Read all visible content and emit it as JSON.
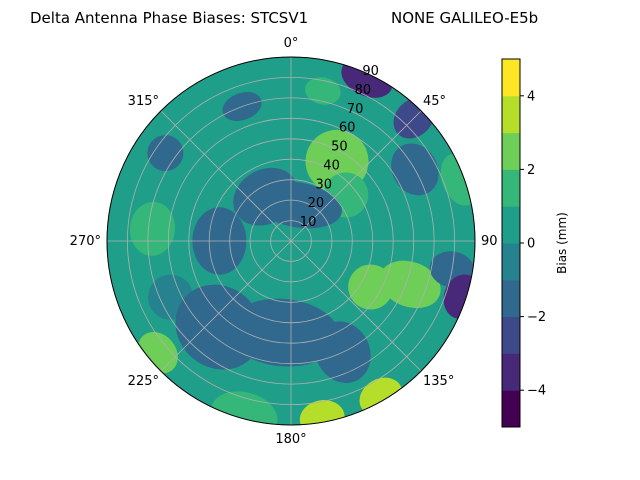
{
  "chart_data": {
    "type": "heatmap",
    "subtype": "polar-contour",
    "title_left": "Delta Antenna Phase Biases: STCSV1",
    "title_right": "NONE GALILEO-E5b",
    "azimuth_labels": [
      "0°",
      "45°",
      "90",
      "135°",
      "180°",
      "225°",
      "270°",
      "315°"
    ],
    "azimuth_degrees": [
      0,
      45,
      90,
      135,
      180,
      225,
      270,
      315
    ],
    "radial_ticks": [
      10,
      20,
      30,
      40,
      50,
      60,
      70,
      80,
      90
    ],
    "radial_range": [
      0,
      90
    ],
    "radial_label_azimuth_deg": 22.5,
    "grid": true,
    "colorbar": {
      "label": "Bias (mm)",
      "ticks": [
        -4,
        -2,
        0,
        2,
        4
      ],
      "range": [
        -5,
        5
      ],
      "levels": [
        -5,
        -4,
        -3,
        -2,
        -1,
        0,
        1,
        2,
        3,
        4,
        5
      ],
      "colors": [
        "#440154",
        "#482878",
        "#3e4989",
        "#31688e",
        "#26828e",
        "#1f9e89",
        "#35b779",
        "#6ece58",
        "#b5de2b",
        "#fde725"
      ]
    },
    "background_level": 0.3,
    "patches": [
      {
        "az": 25,
        "r": 88,
        "ra": 12,
        "rr": 8,
        "value": -3.4
      },
      {
        "az": 45,
        "r": 85,
        "ra": 8,
        "rr": 10,
        "value": -2.6
      },
      {
        "az": 12,
        "r": 75,
        "ra": 8,
        "rr": 6,
        "value": 1.6
      },
      {
        "az": 340,
        "r": 70,
        "ra": 9,
        "rr": 6,
        "value": -1.6
      },
      {
        "az": 305,
        "r": 75,
        "ra": 8,
        "rr": 8,
        "value": -1.2
      },
      {
        "az": 275,
        "r": 68,
        "ra": 12,
        "rr": 10,
        "value": 1.7
      },
      {
        "az": 245,
        "r": 65,
        "ra": 10,
        "rr": 10,
        "value": -0.8
      },
      {
        "az": 220,
        "r": 55,
        "ra": 20,
        "rr": 18,
        "value": -1.7
      },
      {
        "az": 185,
        "r": 45,
        "ra": 25,
        "rr": 15,
        "value": -1.6
      },
      {
        "az": 155,
        "r": 60,
        "ra": 12,
        "rr": 14,
        "value": -1.3
      },
      {
        "az": 110,
        "r": 62,
        "ra": 10,
        "rr": 14,
        "value": 2.3
      },
      {
        "az": 100,
        "r": 80,
        "ra": 8,
        "rr": 10,
        "value": -1.8
      },
      {
        "az": 108,
        "r": 88,
        "ra": 10,
        "rr": 8,
        "value": -3.6
      },
      {
        "az": 60,
        "r": 70,
        "ra": 12,
        "rr": 10,
        "value": -1.4
      },
      {
        "az": 70,
        "r": 88,
        "ra": 12,
        "rr": 8,
        "value": 1.6
      },
      {
        "az": 30,
        "r": 45,
        "ra": 14,
        "rr": 14,
        "value": 2.6
      },
      {
        "az": 50,
        "r": 35,
        "ra": 10,
        "rr": 10,
        "value": 1.8
      },
      {
        "az": 330,
        "r": 25,
        "ra": 15,
        "rr": 12,
        "value": -1.5
      },
      {
        "az": 270,
        "r": 35,
        "ra": 15,
        "rr": 12,
        "value": -1.2
      },
      {
        "az": 195,
        "r": 88,
        "ra": 15,
        "rr": 10,
        "value": 1.4
      },
      {
        "az": 170,
        "r": 88,
        "ra": 10,
        "rr": 8,
        "value": 3.4
      },
      {
        "az": 150,
        "r": 88,
        "ra": 10,
        "rr": 8,
        "value": 3.2
      },
      {
        "az": 230,
        "r": 85,
        "ra": 10,
        "rr": 8,
        "value": 2.4
      },
      {
        "az": 120,
        "r": 45,
        "ra": 10,
        "rr": 10,
        "value": 2.2
      },
      {
        "az": 10,
        "r": 18,
        "ra": 20,
        "rr": 10,
        "value": -1.2
      }
    ]
  }
}
